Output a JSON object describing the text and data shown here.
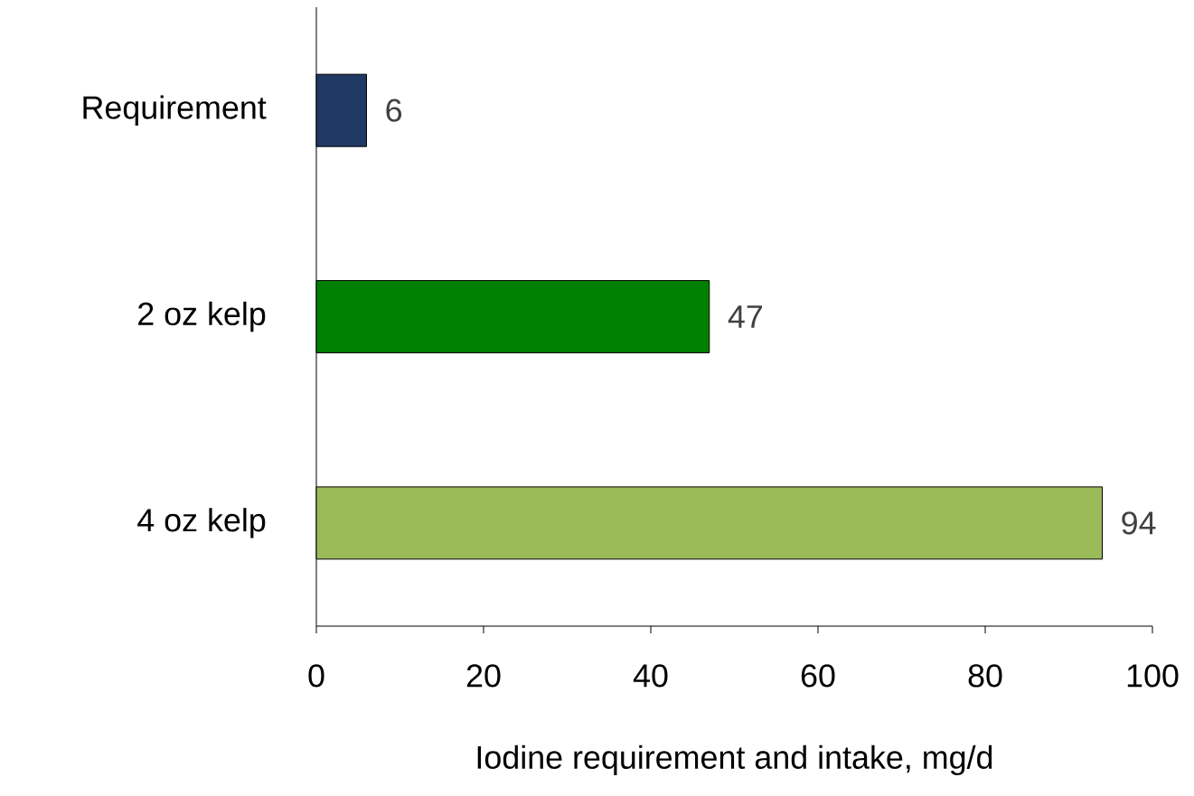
{
  "chart_data": {
    "type": "bar",
    "orientation": "horizontal",
    "xlabel": "Iodine requirement and intake, mg/d",
    "categories": [
      "Requirement",
      "2 oz kelp",
      "4 oz kelp"
    ],
    "values": [
      6,
      47,
      94
    ],
    "colors": [
      "#203864",
      "#008000",
      "#9bbb59"
    ],
    "value_labels": [
      "6",
      "47",
      "94"
    ],
    "xlim": [
      0,
      100
    ],
    "xticks": [
      0,
      20,
      40,
      60,
      80,
      100
    ]
  }
}
